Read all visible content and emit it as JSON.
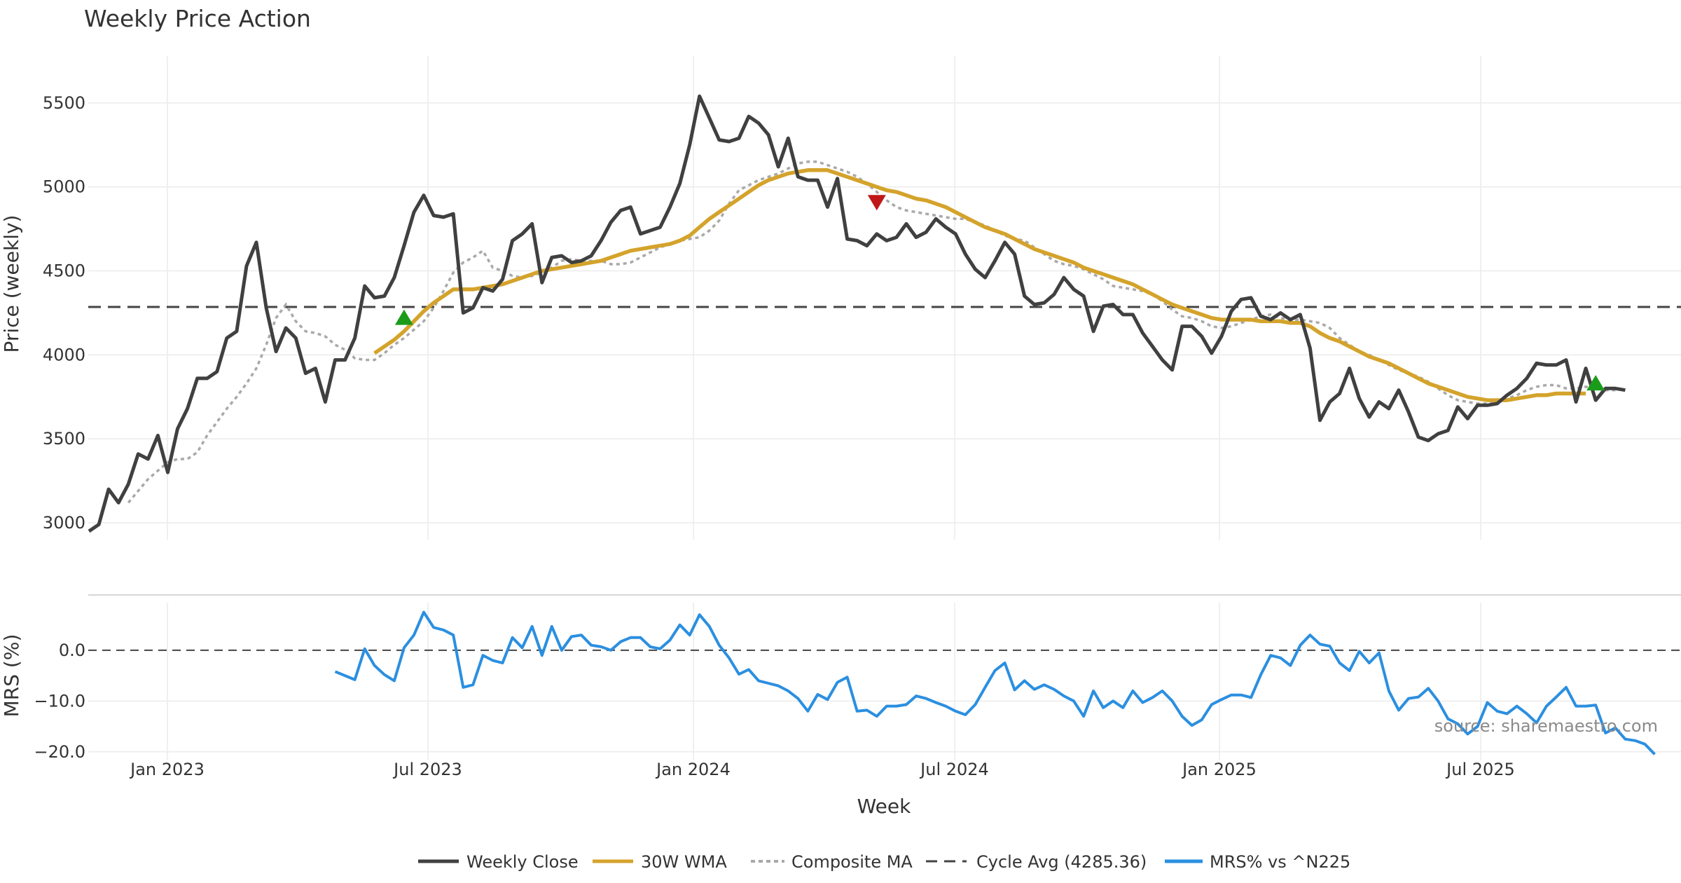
{
  "chart_data": {
    "type": "line",
    "title": "Weekly Price Action",
    "xlabel": "Week",
    "source": "source: sharemaestro.com",
    "x_tick_labels": [
      "Jan 2023",
      "Jul 2023",
      "Jan 2024",
      "Jul 2024",
      "Jan 2025",
      "Jul 2025"
    ],
    "price_panel": {
      "ylabel": "Price (weekly)",
      "ylim": [
        2900,
        5800
      ],
      "y_ticks": [
        3000,
        3500,
        4000,
        4500,
        5000,
        5500
      ],
      "cycle_avg": 4285.36,
      "weekly_close": [
        2950,
        2990,
        3200,
        3120,
        3230,
        3410,
        3380,
        3520,
        3300,
        3560,
        3680,
        3860,
        3860,
        3900,
        4100,
        4140,
        4530,
        4670,
        4280,
        4020,
        4160,
        4100,
        3890,
        3920,
        3720,
        3970,
        3970,
        4100,
        4410,
        4340,
        4350,
        4460,
        4650,
        4850,
        4950,
        4830,
        4820,
        4840,
        4250,
        4280,
        4400,
        4380,
        4450,
        4680,
        4720,
        4780,
        4430,
        4580,
        4590,
        4550,
        4560,
        4590,
        4680,
        4790,
        4860,
        4880,
        4720,
        4740,
        4760,
        4880,
        5020,
        5250,
        5540,
        5410,
        5280,
        5270,
        5290,
        5420,
        5380,
        5310,
        5120,
        5290,
        5060,
        5040,
        5040,
        4880,
        5050,
        4690,
        4680,
        4650,
        4720,
        4680,
        4700,
        4780,
        4700,
        4730,
        4810,
        4760,
        4720,
        4600,
        4510,
        4460,
        4560,
        4670,
        4600,
        4350,
        4300,
        4310,
        4360,
        4460,
        4390,
        4350,
        4140,
        4290,
        4300,
        4240,
        4240,
        4130,
        4050,
        3970,
        3910,
        4170,
        4170,
        4110,
        4010,
        4110,
        4260,
        4330,
        4340,
        4230,
        4210,
        4250,
        4210,
        4240,
        4040,
        3610,
        3720,
        3770,
        3920,
        3740,
        3630,
        3720,
        3680,
        3790,
        3660,
        3510,
        3490,
        3530,
        3550,
        3690,
        3620,
        3700,
        3700,
        3710,
        3760,
        3800,
        3860,
        3950,
        3940,
        3940,
        3970,
        3720,
        3920,
        3730,
        3800,
        3800,
        3790
      ],
      "wma30_start_index": 29,
      "wma30": [
        4010,
        4050,
        4090,
        4140,
        4200,
        4260,
        4310,
        4350,
        4390,
        4390,
        4390,
        4400,
        4410,
        4420,
        4440,
        4460,
        4480,
        4500,
        4510,
        4520,
        4530,
        4540,
        4550,
        4560,
        4580,
        4600,
        4620,
        4630,
        4640,
        4650,
        4660,
        4680,
        4710,
        4760,
        4810,
        4850,
        4890,
        4930,
        4970,
        5010,
        5040,
        5060,
        5080,
        5090,
        5100,
        5100,
        5100,
        5080,
        5060,
        5040,
        5020,
        5000,
        4980,
        4970,
        4950,
        4930,
        4920,
        4900,
        4880,
        4850,
        4820,
        4790,
        4760,
        4740,
        4720,
        4690,
        4660,
        4630,
        4610,
        4590,
        4570,
        4550,
        4520,
        4500,
        4480,
        4460,
        4440,
        4420,
        4390,
        4360,
        4330,
        4300,
        4280,
        4260,
        4240,
        4220,
        4210,
        4210,
        4210,
        4210,
        4200,
        4200,
        4200,
        4190,
        4190,
        4170,
        4130,
        4100,
        4080,
        4050,
        4020,
        3990,
        3970,
        3950,
        3920,
        3890,
        3860,
        3830,
        3810,
        3790,
        3770,
        3750,
        3740,
        3730,
        3730,
        3730,
        3740,
        3750,
        3760,
        3760,
        3770,
        3770,
        3770,
        3770
      ],
      "composite_ma_start_index": 4,
      "composite_ma": [
        3120,
        3190,
        3260,
        3310,
        3360,
        3380,
        3380,
        3420,
        3520,
        3600,
        3680,
        3750,
        3830,
        3920,
        4060,
        4220,
        4300,
        4200,
        4140,
        4130,
        4110,
        4060,
        4030,
        3980,
        3970,
        3970,
        4010,
        4060,
        4100,
        4150,
        4200,
        4280,
        4380,
        4490,
        4550,
        4580,
        4620,
        4520,
        4500,
        4470,
        4460,
        4470,
        4490,
        4520,
        4560,
        4570,
        4560,
        4560,
        4560,
        4540,
        4540,
        4550,
        4580,
        4610,
        4640,
        4660,
        4680,
        4690,
        4700,
        4740,
        4800,
        4900,
        4980,
        5010,
        5040,
        5060,
        5080,
        5110,
        5140,
        5150,
        5150,
        5130,
        5110,
        5090,
        5060,
        5020,
        4970,
        4920,
        4880,
        4860,
        4850,
        4840,
        4830,
        4820,
        4810,
        4810,
        4790,
        4770,
        4740,
        4710,
        4690,
        4680,
        4640,
        4600,
        4560,
        4540,
        4530,
        4510,
        4480,
        4450,
        4410,
        4400,
        4390,
        4380,
        4360,
        4320,
        4270,
        4230,
        4220,
        4200,
        4170,
        4160,
        4170,
        4190,
        4210,
        4230,
        4240,
        4220,
        4210,
        4210,
        4200,
        4190,
        4160,
        4100,
        4060,
        4020,
        4000,
        3970,
        3940,
        3910,
        3890,
        3870,
        3840,
        3800,
        3760,
        3730,
        3720,
        3710,
        3710,
        3720,
        3740,
        3760,
        3790,
        3810,
        3820,
        3820,
        3800,
        3800,
        3810,
        3800,
        3790,
        3790
      ]
    },
    "mrs_panel": {
      "ylabel": "MRS (%)",
      "ylim": [
        -21,
        8
      ],
      "y_ticks": [
        0,
        -10,
        -20
      ],
      "y_tick_labels": [
        "0.0",
        "−10.0",
        "−20.0"
      ],
      "mrs_start_index": 25,
      "mrs": [
        -4.2,
        -5,
        -5.8,
        0.3,
        -3,
        -4.8,
        -6,
        0.5,
        3,
        7.5,
        4.5,
        4,
        3,
        -7.3,
        -6.8,
        -1,
        -2,
        -2.5,
        2.5,
        0.5,
        4.7,
        -1,
        4.7,
        0,
        2.7,
        3,
        1,
        0.7,
        0,
        1.7,
        2.5,
        2.5,
        0.7,
        0.3,
        2,
        5,
        3,
        7,
        4.7,
        1,
        -1.5,
        -4.7,
        -3.8,
        -6,
        -6.5,
        -7,
        -8,
        -9.5,
        -12,
        -8.7,
        -9.7,
        -6.3,
        -5.3,
        -12,
        -11.8,
        -13,
        -11,
        -11,
        -10.7,
        -9,
        -9.5,
        -10.3,
        -11,
        -12,
        -12.7,
        -10.7,
        -7.3,
        -4,
        -2.5,
        -7.8,
        -6,
        -7.7,
        -6.8,
        -7.7,
        -9,
        -10,
        -13,
        -8,
        -11.3,
        -10,
        -11.3,
        -8,
        -10.3,
        -9.3,
        -8,
        -10,
        -13,
        -14.8,
        -13.7,
        -10.7,
        -9.7,
        -8.8,
        -8.8,
        -9.3,
        -4.8,
        -1,
        -1.5,
        -3,
        1,
        3,
        1.2,
        0.8,
        -2.5,
        -4,
        -0.2,
        -2.5,
        -0.5,
        -8,
        -11.8,
        -9.5,
        -9.2,
        -7.5,
        -10,
        -13.5,
        -14.5,
        -16.5,
        -15,
        -10.3,
        -12,
        -12.5,
        -11,
        -12.5,
        -14.3,
        -11,
        -9.2,
        -7.3,
        -11,
        -11,
        -10.8,
        -16.3,
        -15.3,
        -17.5,
        -17.8,
        -18.5,
        -20.5
      ]
    },
    "legend": [
      "Weekly Close",
      "30W WMA",
      "Composite MA",
      "Cycle Avg (4285.36)",
      "MRS% vs ^N225"
    ],
    "markers": {
      "buy": [
        {
          "index": 32,
          "value": 4220
        },
        {
          "index": 153,
          "value": 3830
        }
      ],
      "sell": [
        {
          "index": 80,
          "value": 4910
        }
      ]
    },
    "colors": {
      "close": "#404040",
      "wma": "#d4a32b",
      "composite": "#a9a9a9",
      "cycle": "#444444",
      "mrs": "#2b8fe0",
      "buy": "#1a9c1a",
      "sell": "#c01818"
    }
  }
}
